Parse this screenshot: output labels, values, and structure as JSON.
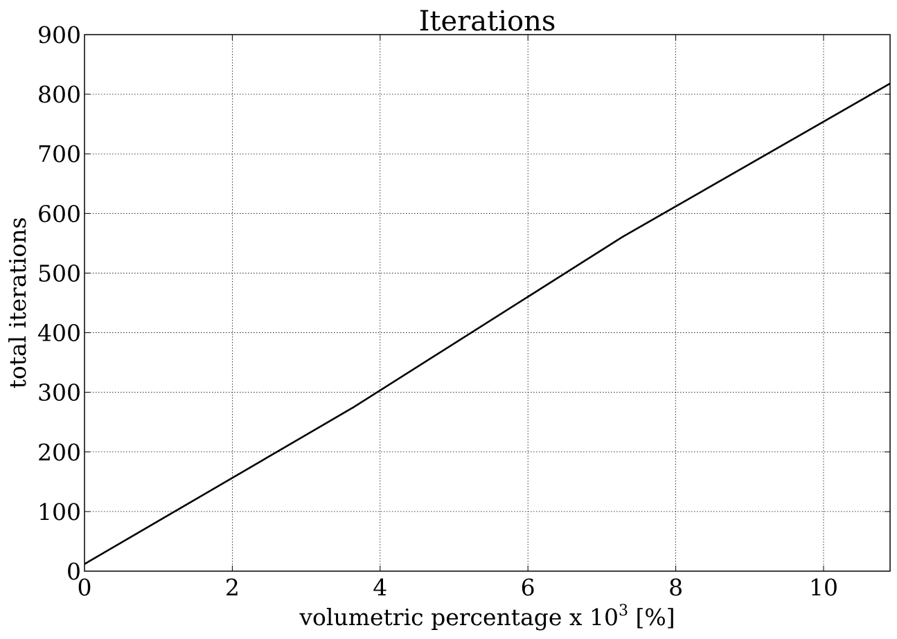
{
  "chart_data": {
    "type": "line",
    "title": "Iterations",
    "xlabel": {
      "prefix": "volumetric percentage x ",
      "base": "10",
      "exponent": "3",
      "suffix": " [%]"
    },
    "ylabel": "total iterations",
    "xlim": [
      0,
      10.9
    ],
    "ylim": [
      0,
      900
    ],
    "xticks": [
      0,
      2,
      4,
      6,
      8,
      10
    ],
    "yticks": [
      0,
      100,
      200,
      300,
      400,
      500,
      600,
      700,
      800,
      900
    ],
    "grid": true,
    "series": [
      {
        "color": "#000000",
        "x": [
          0,
          3.64,
          7.27,
          10.9
        ],
        "y": [
          12,
          275,
          560,
          818
        ]
      }
    ]
  }
}
